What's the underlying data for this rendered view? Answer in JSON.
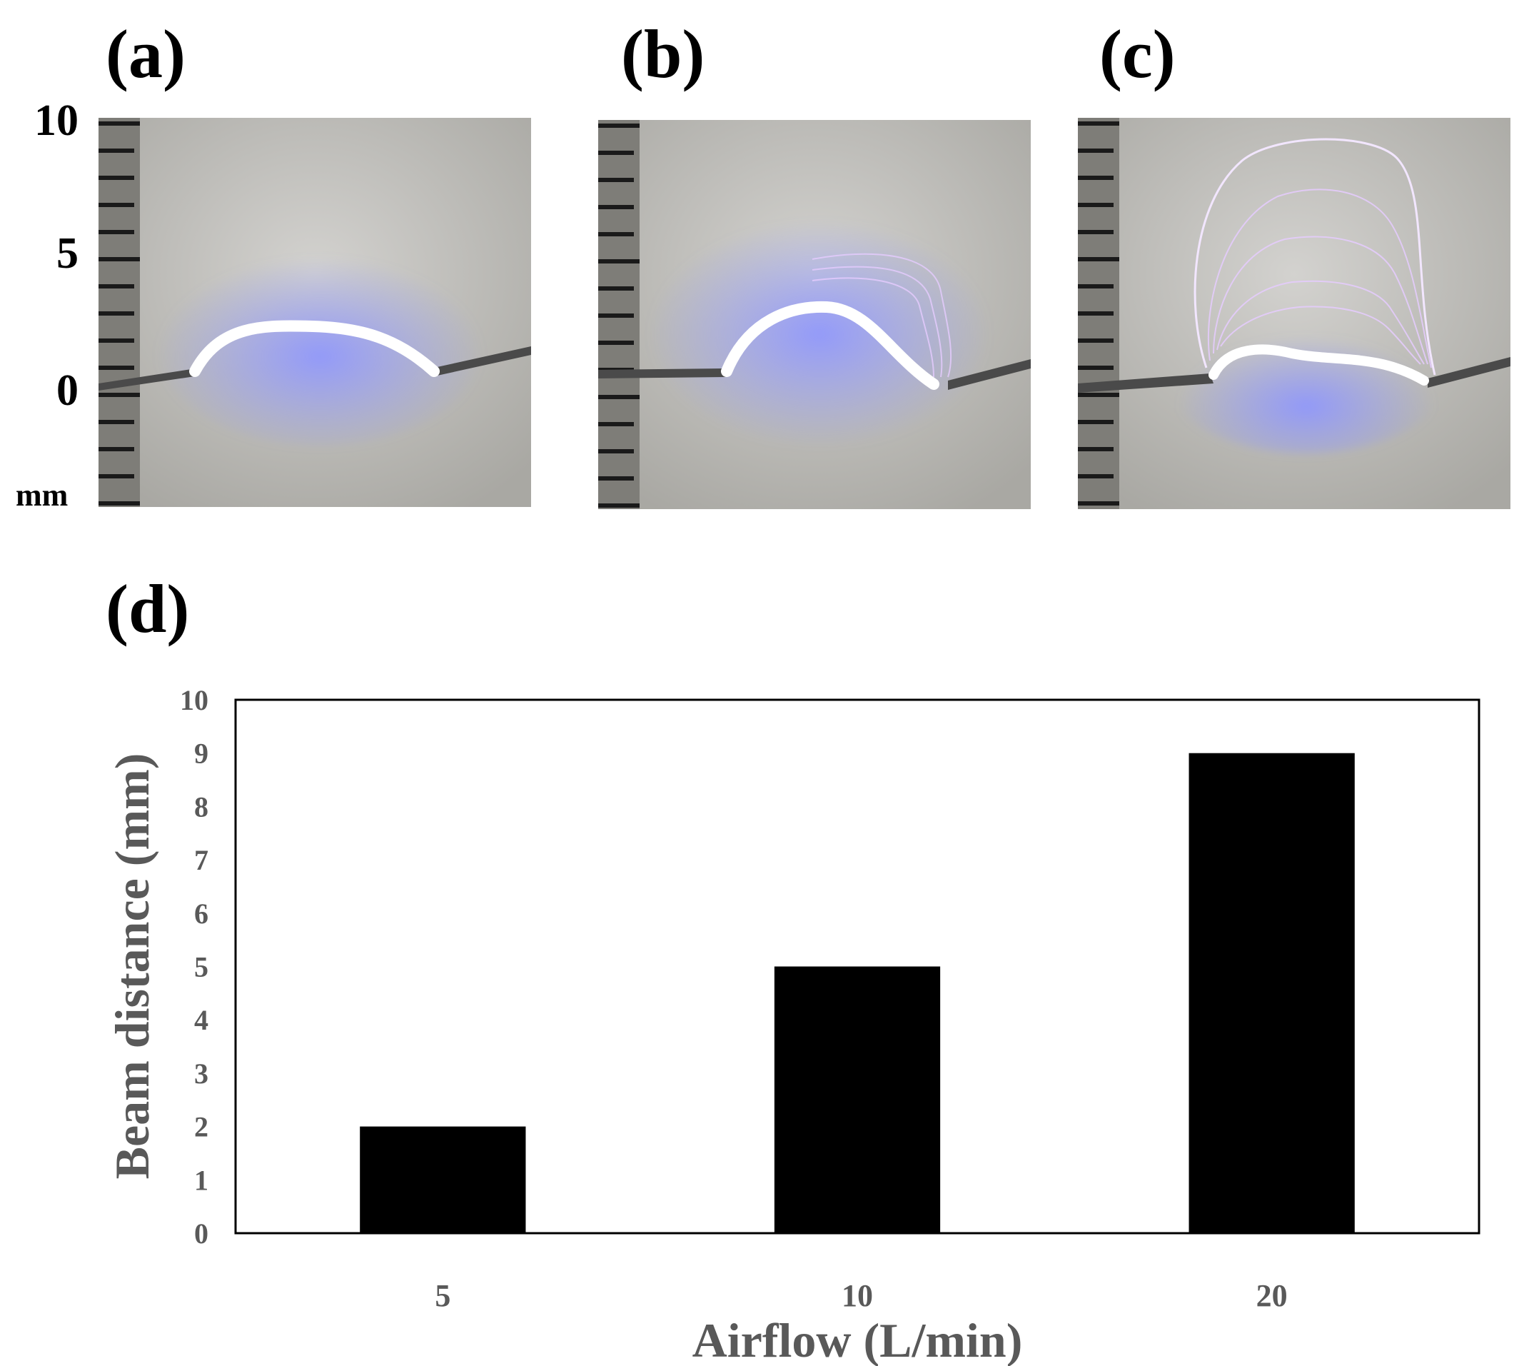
{
  "panels": {
    "a": "(a)",
    "b": "(b)",
    "c": "(c)",
    "d": "(d)"
  },
  "photo_scale": {
    "ticks": [
      "10",
      "5",
      "0"
    ],
    "unit": "mm"
  },
  "colors": {
    "bar": "#000000",
    "axis_text": "#595959",
    "photo_background": "#c8c7c2",
    "plasma_core": "#ffffff",
    "plasma_glow": "#7f86ff",
    "filament": "#e6ccff"
  },
  "chart_data": {
    "type": "bar",
    "categories": [
      "5",
      "10",
      "20"
    ],
    "values": [
      2,
      5,
      9
    ],
    "xlabel": "Airflow (L/min)",
    "ylabel": "Beam distance (mm)",
    "ylim": [
      0,
      10
    ],
    "yticks": [
      "0",
      "1",
      "2",
      "3",
      "4",
      "5",
      "6",
      "7",
      "8",
      "9",
      "10"
    ],
    "grid": false,
    "legend": "none"
  }
}
